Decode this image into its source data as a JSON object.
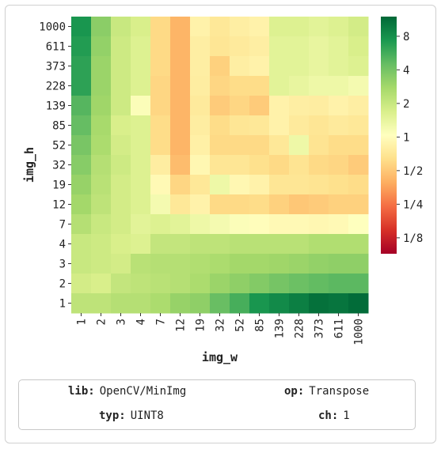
{
  "chart_data": {
    "type": "heatmap",
    "xlabel": "img_w",
    "ylabel": "img_h",
    "x_categories": [
      "1",
      "2",
      "3",
      "4",
      "7",
      "12",
      "19",
      "32",
      "52",
      "85",
      "139",
      "228",
      "373",
      "611",
      "1000"
    ],
    "y_categories": [
      "1000",
      "611",
      "373",
      "228",
      "139",
      "85",
      "52",
      "32",
      "19",
      "12",
      "7",
      "4",
      "3",
      "2",
      "1"
    ],
    "colorbar": {
      "scale": "log2",
      "range": [
        0.09,
        12
      ],
      "ticks": [
        "8",
        "4",
        "2",
        "1",
        "1/2",
        "1/4",
        "1/8"
      ],
      "tick_values": [
        8,
        4,
        2,
        1,
        0.5,
        0.25,
        0.125
      ],
      "colormap": "RdYlGn"
    },
    "values": [
      [
        7.5,
        3.4,
        2.0,
        1.7,
        0.6,
        0.42,
        0.85,
        0.72,
        0.8,
        0.85,
        1.6,
        1.6,
        1.5,
        1.6,
        1.8
      ],
      [
        7.0,
        3.2,
        1.9,
        1.6,
        0.6,
        0.42,
        0.8,
        0.7,
        0.75,
        0.8,
        1.5,
        1.5,
        1.4,
        1.5,
        1.7
      ],
      [
        6.5,
        3.0,
        1.9,
        1.6,
        0.6,
        0.42,
        0.8,
        0.55,
        0.8,
        0.85,
        1.5,
        1.5,
        1.4,
        1.5,
        1.6
      ],
      [
        6.5,
        3.0,
        1.9,
        1.6,
        0.58,
        0.42,
        0.78,
        0.58,
        0.62,
        0.62,
        1.5,
        1.4,
        1.3,
        1.3,
        1.2
      ],
      [
        5.0,
        2.9,
        1.9,
        1.1,
        0.58,
        0.42,
        0.75,
        0.52,
        0.58,
        0.52,
        0.85,
        0.8,
        0.78,
        0.85,
        0.8
      ],
      [
        4.5,
        2.7,
        1.7,
        1.6,
        0.62,
        0.42,
        0.78,
        0.62,
        0.7,
        0.72,
        0.85,
        0.75,
        0.7,
        0.75,
        0.72
      ],
      [
        3.9,
        2.6,
        1.8,
        1.6,
        0.62,
        0.42,
        0.82,
        0.6,
        0.6,
        0.6,
        0.72,
        1.3,
        0.68,
        0.62,
        0.62
      ],
      [
        3.5,
        2.4,
        1.9,
        1.6,
        0.78,
        0.45,
        0.92,
        0.7,
        0.7,
        0.65,
        0.6,
        0.68,
        0.6,
        0.58,
        0.52
      ],
      [
        3.1,
        2.3,
        1.8,
        1.6,
        0.95,
        0.58,
        0.72,
        1.3,
        0.92,
        0.85,
        0.7,
        0.7,
        0.68,
        0.65,
        0.62
      ],
      [
        2.8,
        2.2,
        1.8,
        1.6,
        1.2,
        0.72,
        0.85,
        0.6,
        0.6,
        0.62,
        0.55,
        0.5,
        0.52,
        0.55,
        0.55
      ],
      [
        2.4,
        2.0,
        1.8,
        1.5,
        1.6,
        1.5,
        1.3,
        1.2,
        1.1,
        1.0,
        0.95,
        0.95,
        0.92,
        0.95,
        1.05
      ],
      [
        2.0,
        1.9,
        1.7,
        1.6,
        2.1,
        2.1,
        2.2,
        2.2,
        2.3,
        2.3,
        2.3,
        2.3,
        2.5,
        2.5,
        2.5
      ],
      [
        2.0,
        1.9,
        1.8,
        2.3,
        2.4,
        2.4,
        2.5,
        2.6,
        2.8,
        2.8,
        2.9,
        3.0,
        3.2,
        3.3,
        3.3
      ],
      [
        1.8,
        1.7,
        2.1,
        2.2,
        2.3,
        2.4,
        2.6,
        3.0,
        3.3,
        3.6,
        4.0,
        4.3,
        4.6,
        4.8,
        4.8
      ],
      [
        2.2,
        2.2,
        2.4,
        2.4,
        2.6,
        3.1,
        3.3,
        4.4,
        5.5,
        7.5,
        8.5,
        9.5,
        11.0,
        10.5,
        11.5
      ]
    ]
  },
  "info": {
    "lib_label": "lib:",
    "lib_value": "OpenCV/MinImg",
    "op_label": "op:",
    "op_value": "Transpose",
    "typ_label": "typ:",
    "typ_value": "UINT8",
    "ch_label": "ch:",
    "ch_value": "1"
  }
}
